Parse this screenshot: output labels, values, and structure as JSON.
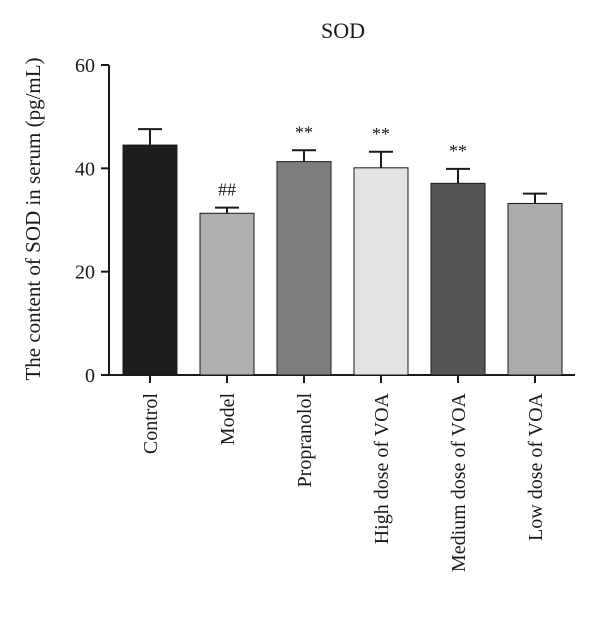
{
  "chart_data": {
    "type": "bar",
    "title": "SOD",
    "xlabel": "",
    "ylabel": "The content of SOD in serum (pg/mL)",
    "ylim": [
      0,
      60
    ],
    "yticks": [
      "0",
      "20",
      "40",
      "60"
    ],
    "grid": false,
    "legend": "none",
    "categories": [
      "Control",
      "Model",
      "Propranolol",
      "High dose of VOA",
      "Medium dose of VOA",
      "Low dose of VOA"
    ],
    "values": [
      44.5,
      31.3,
      41.3,
      40.1,
      37.1,
      33.2
    ],
    "errors": [
      3.1,
      1.1,
      2.2,
      3.1,
      2.8,
      1.9
    ],
    "annotations": [
      "",
      "##",
      "**",
      "**",
      "**",
      ""
    ],
    "colors": [
      "#1e1e1e",
      "#b0b0b0",
      "#7d7d7d",
      "#e3e3e3",
      "#555555",
      "#ababab"
    ]
  }
}
